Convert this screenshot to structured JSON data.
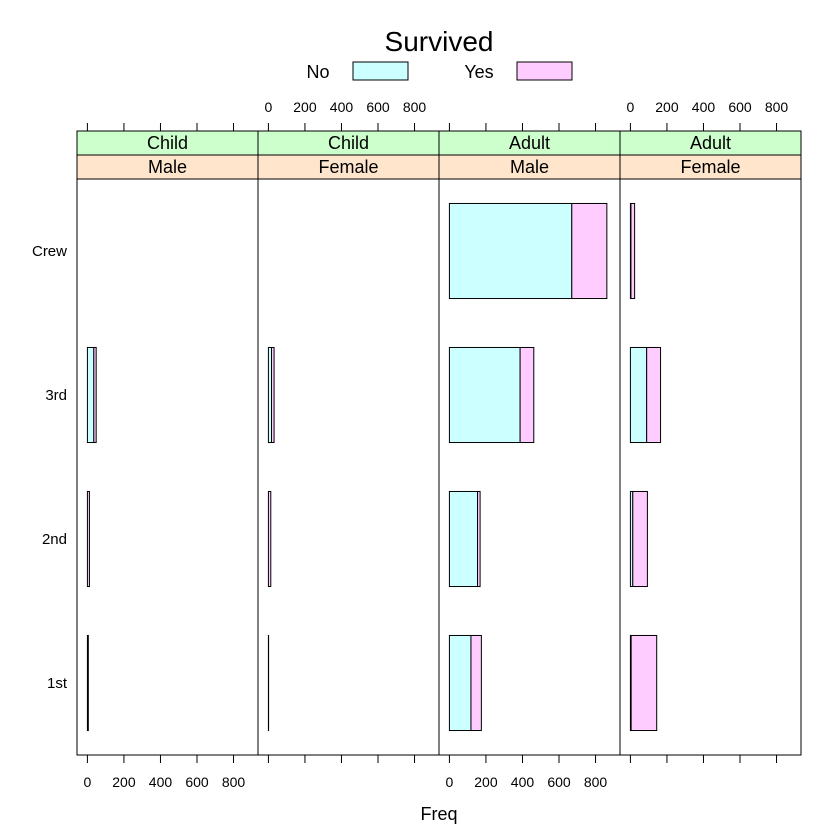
{
  "chart_data": {
    "type": "bar",
    "orientation": "horizontal",
    "stacked": true,
    "legend_title": "Survived",
    "legend_position": "top",
    "xlabel": "Freq",
    "xlim": [
      -57,
      934
    ],
    "x_ticks": [
      0,
      200,
      400,
      600,
      800
    ],
    "x_tick_labels": [
      "0",
      "200",
      "400",
      "600",
      "800"
    ],
    "categories": [
      "1st",
      "2nd",
      "3rd",
      "Crew"
    ],
    "series": [
      {
        "name": "No",
        "color": "#ccffff"
      },
      {
        "name": "Yes",
        "color": "#ffccff"
      }
    ],
    "panels": [
      {
        "strip_top": "Child",
        "strip_bottom": "Male",
        "no": [
          0,
          0,
          35,
          0
        ],
        "yes": [
          5,
          11,
          13,
          0
        ]
      },
      {
        "strip_top": "Child",
        "strip_bottom": "Female",
        "no": [
          0,
          0,
          17,
          0
        ],
        "yes": [
          1,
          13,
          14,
          0
        ]
      },
      {
        "strip_top": "Adult",
        "strip_bottom": "Male",
        "no": [
          118,
          154,
          387,
          670
        ],
        "yes": [
          57,
          14,
          75,
          192
        ]
      },
      {
        "strip_top": "Adult",
        "strip_bottom": "Female",
        "no": [
          4,
          13,
          89,
          3
        ],
        "yes": [
          140,
          80,
          76,
          20
        ]
      }
    ],
    "strip_top_color": "#ccffcc",
    "strip_bottom_color": "#ffe5cc"
  }
}
